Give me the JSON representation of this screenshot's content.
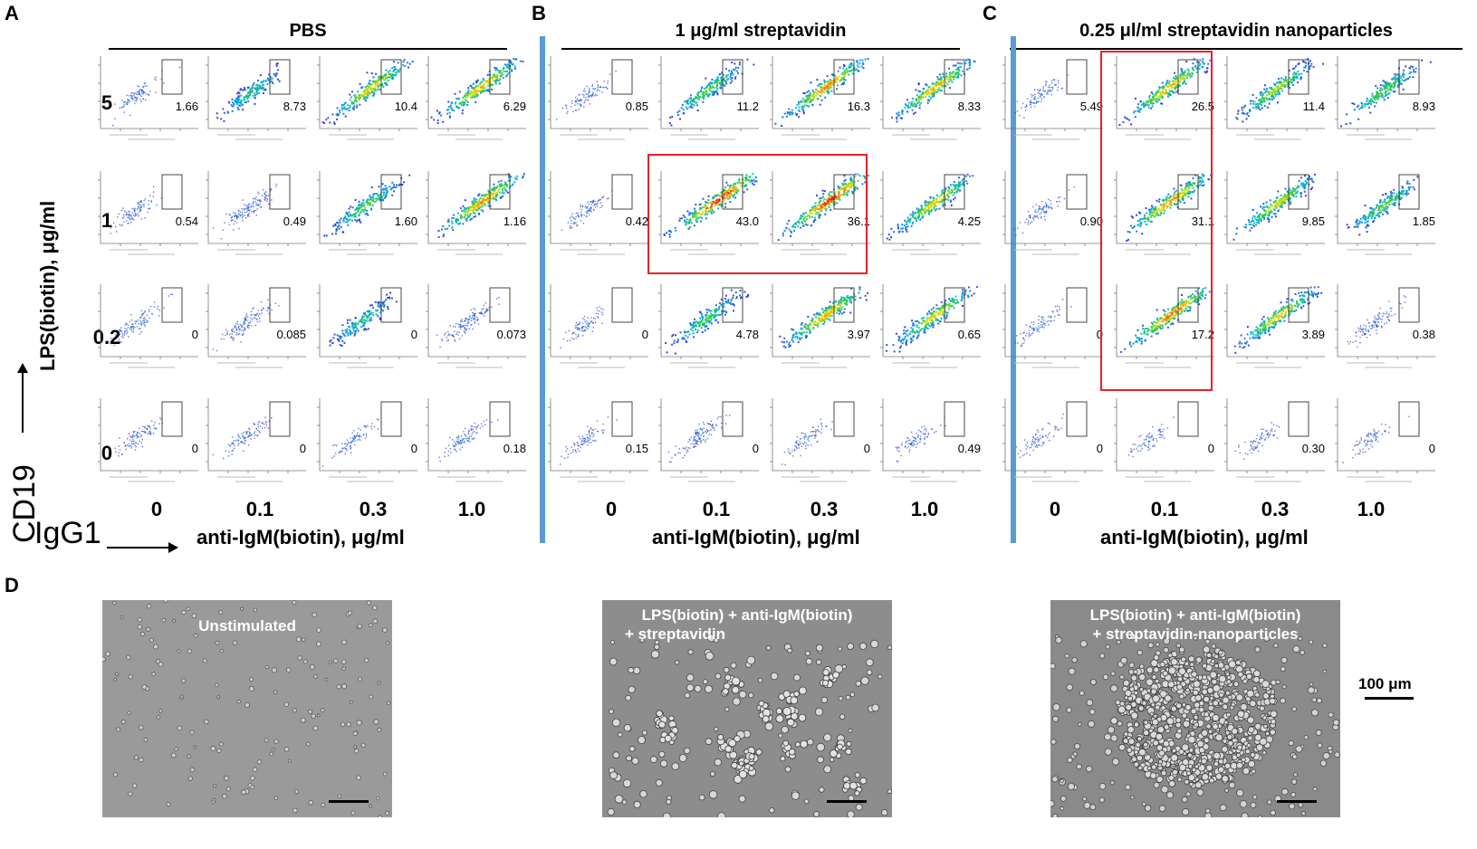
{
  "panels": {
    "A": {
      "letter": "A",
      "title": "PBS"
    },
    "B": {
      "letter": "B",
      "title": "1 μg/ml streptavidin"
    },
    "C": {
      "letter": "C",
      "title": "0.25 μl/ml streptavidin nanoparticles"
    },
    "D": {
      "letter": "D"
    }
  },
  "axes": {
    "row_labels": [
      "5",
      "1",
      "0.2",
      "0"
    ],
    "col_labels": [
      "0",
      "0.1",
      "0.3",
      "1.0"
    ],
    "y_title": "LPS(biotin),  μg/ml",
    "x_title": "anti-IgM(biotin),  μg/ml",
    "flow_y_marker": "CD19",
    "flow_x_marker": "IgG1"
  },
  "gate_values": {
    "A": [
      [
        "1.66",
        "8.73",
        "10.4",
        "6.29"
      ],
      [
        "0.54",
        "0.49",
        "1.60",
        "1.16"
      ],
      [
        "0",
        "0.085",
        "0",
        "0.073"
      ],
      [
        "0",
        "0",
        "0",
        "0.18"
      ]
    ],
    "B": [
      [
        "0.85",
        "11.2",
        "16.3",
        "8.33"
      ],
      [
        "0.42",
        "43.0",
        "36.1",
        "4.25"
      ],
      [
        "0",
        "4.78",
        "3.97",
        "0.65"
      ],
      [
        "0.15",
        "0",
        "0",
        "0.49"
      ]
    ],
    "C": [
      [
        "5.49",
        "26.5",
        "11.4",
        "8.93"
      ],
      [
        "0.90",
        "31.1",
        "9.85",
        "1.85"
      ],
      [
        "0",
        "17.2",
        "3.89",
        "0.38"
      ],
      [
        "0",
        "0",
        "0.30",
        "0"
      ]
    ]
  },
  "density_levels": {
    "A": [
      [
        0.15,
        0.4,
        0.75,
        0.8
      ],
      [
        0.15,
        0.3,
        0.55,
        0.85
      ],
      [
        0.2,
        0.25,
        0.4,
        0.3
      ],
      [
        0.15,
        0.15,
        0.1,
        0.15
      ]
    ],
    "B": [
      [
        0.15,
        0.55,
        0.85,
        0.8
      ],
      [
        0.15,
        1.0,
        1.0,
        0.75
      ],
      [
        0.1,
        0.5,
        0.8,
        0.75
      ],
      [
        0.1,
        0.25,
        0.1,
        0.1
      ]
    ],
    "C": [
      [
        0.15,
        0.8,
        0.65,
        0.55
      ],
      [
        0.1,
        0.85,
        0.7,
        0.55
      ],
      [
        0.1,
        0.9,
        0.75,
        0.2
      ],
      [
        0.05,
        0.05,
        0.05,
        0.05
      ]
    ]
  },
  "highlights": {
    "B": "LPS 1 μg/ml, anti-IgM 0.1 and 0.3 μg/ml",
    "C": "anti-IgM 0.1 μg/ml, LPS 5, 1, 0.2 μg/ml"
  },
  "micrographs": [
    {
      "caption_lines": [
        "Unstimulated"
      ],
      "scene": "sparse"
    },
    {
      "caption_lines": [
        "LPS(biotin) + anti-IgM(biotin)",
        "+ streptavidin"
      ],
      "scene": "clusters"
    },
    {
      "caption_lines": [
        "LPS(biotin) + anti-IgM(biotin)",
        "+ streptavidin-nanoparticles"
      ],
      "scene": "aggregate"
    }
  ],
  "scale_bar_label": "100 μm",
  "colors": {
    "separator": "#5b9bd5",
    "highlight": "#e8202a"
  }
}
